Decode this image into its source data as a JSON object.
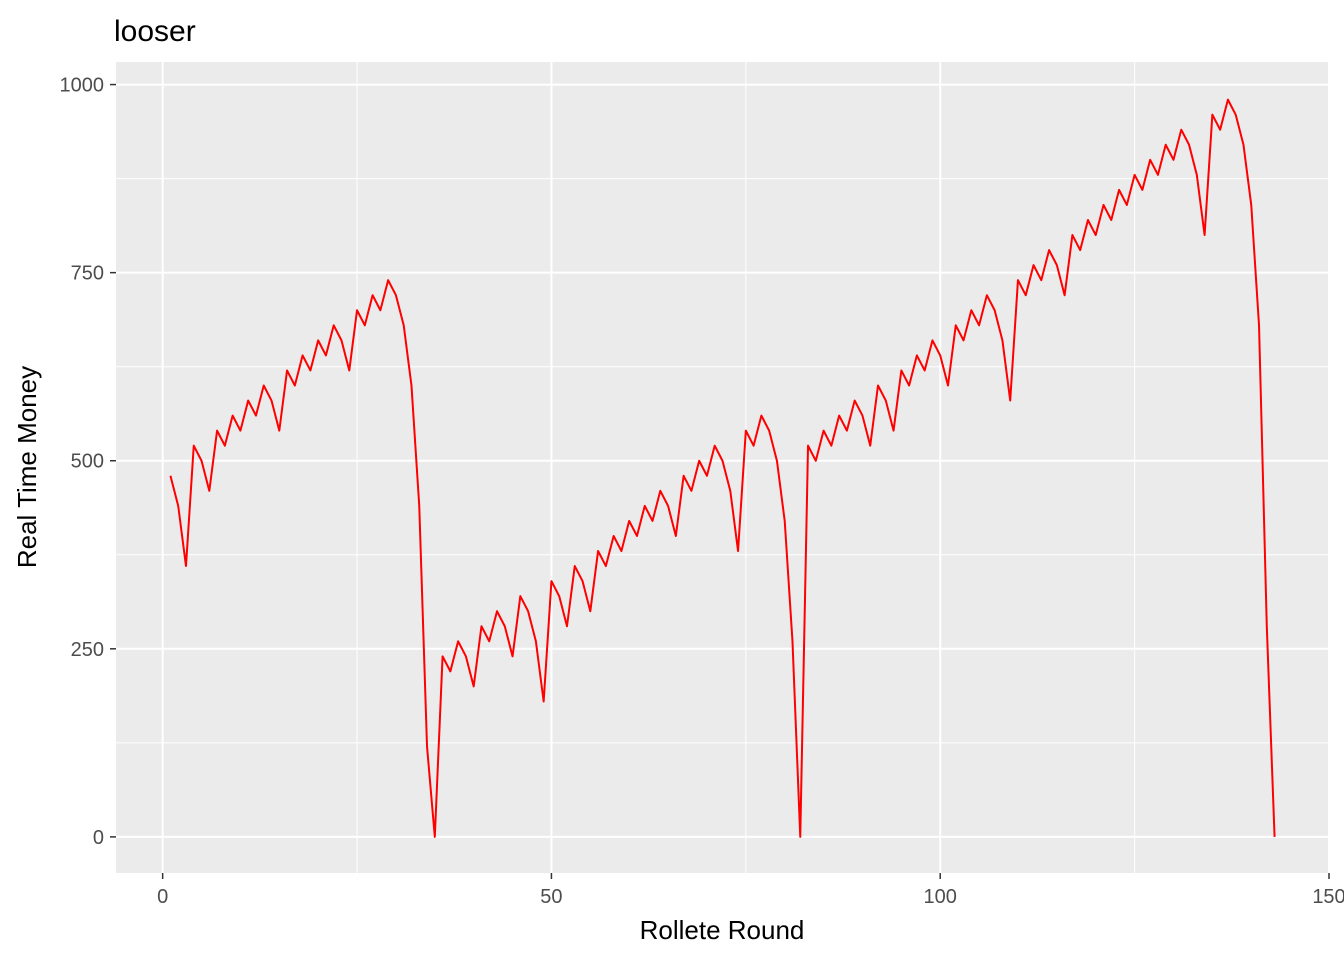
{
  "chart_data": {
    "type": "line",
    "title": "looser",
    "xlabel": "Rollete Round",
    "ylabel": "Real Time Money",
    "xlim": [
      -6,
      150
    ],
    "ylim": [
      -48,
      1030
    ],
    "x_ticks": [
      0,
      50,
      100,
      150
    ],
    "y_ticks": [
      0,
      250,
      500,
      750,
      1000
    ],
    "x_tick_labels": [
      "0",
      "50",
      "100",
      "150"
    ],
    "y_tick_labels": [
      "0",
      "250",
      "500",
      "750",
      "1000"
    ],
    "grid": true,
    "background": "#ebebeb",
    "grid_color": "#ffffff",
    "line_color": "#ff0000",
    "series": [
      {
        "x": [
          1,
          2,
          3,
          4,
          5,
          6,
          7,
          8,
          9,
          10,
          11,
          12,
          13,
          14,
          15,
          16,
          17,
          18,
          19,
          20,
          21,
          22,
          23,
          24,
          25,
          26,
          27,
          28,
          29,
          30,
          31,
          32,
          33,
          34,
          35,
          36,
          37,
          38,
          39,
          40,
          41,
          42,
          43,
          44,
          45,
          46,
          47,
          48,
          49,
          50,
          51,
          52,
          53,
          54,
          55,
          56,
          57,
          58,
          59,
          60,
          61,
          62,
          63,
          64,
          65,
          66,
          67,
          68,
          69,
          70,
          71,
          72,
          73,
          74,
          75,
          76,
          77,
          78,
          79,
          80,
          81,
          82,
          83,
          84,
          85,
          86,
          87,
          88,
          89,
          90,
          91,
          92,
          93,
          94,
          95,
          96,
          97,
          98,
          99,
          100,
          101,
          102,
          103,
          104,
          105,
          106,
          107,
          108,
          109,
          110,
          111,
          112,
          113,
          114,
          115,
          116,
          117,
          118,
          119,
          120,
          121,
          122,
          123,
          124,
          125,
          126,
          127,
          128,
          129,
          130,
          131,
          132,
          133,
          134,
          135,
          136,
          137,
          138,
          139,
          140,
          141,
          142,
          143
        ],
        "values": [
          480,
          440,
          360,
          520,
          500,
          460,
          540,
          520,
          560,
          540,
          580,
          560,
          600,
          580,
          540,
          620,
          600,
          640,
          620,
          660,
          640,
          680,
          660,
          620,
          700,
          680,
          720,
          700,
          740,
          720,
          680,
          600,
          440,
          120,
          0,
          240,
          220,
          260,
          240,
          200,
          280,
          260,
          300,
          280,
          240,
          320,
          300,
          260,
          180,
          340,
          320,
          280,
          360,
          340,
          300,
          380,
          360,
          400,
          380,
          420,
          400,
          440,
          420,
          460,
          440,
          400,
          480,
          460,
          500,
          480,
          520,
          500,
          460,
          380,
          540,
          520,
          560,
          540,
          500,
          420,
          260,
          0,
          520,
          500,
          540,
          520,
          560,
          540,
          580,
          560,
          520,
          600,
          580,
          540,
          620,
          600,
          640,
          620,
          660,
          640,
          600,
          680,
          660,
          700,
          680,
          720,
          700,
          660,
          580,
          740,
          720,
          760,
          740,
          780,
          760,
          720,
          800,
          780,
          820,
          800,
          840,
          820,
          860,
          840,
          880,
          860,
          900,
          880,
          920,
          900,
          940,
          920,
          880,
          800,
          960,
          940,
          980,
          960,
          920,
          840,
          680,
          280,
          0
        ]
      }
    ]
  }
}
